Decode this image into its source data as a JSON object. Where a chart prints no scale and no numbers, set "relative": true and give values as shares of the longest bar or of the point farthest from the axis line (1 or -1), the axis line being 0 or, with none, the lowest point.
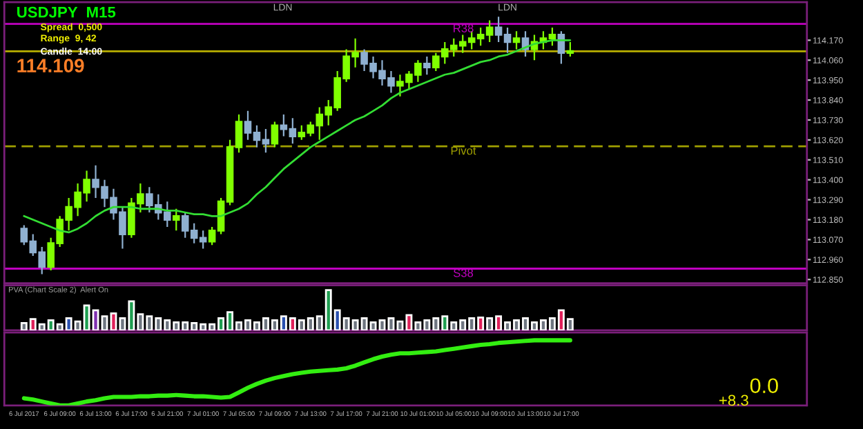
{
  "chart_data": [
    {
      "type": "candlestick",
      "categories": [
        null,
        null,
        null,
        null,
        null,
        null,
        null,
        null,
        null,
        null,
        null,
        null,
        null,
        null,
        null,
        null,
        null,
        null,
        null,
        null,
        null,
        null,
        null,
        null,
        null,
        null,
        null,
        null,
        null,
        null,
        null,
        null,
        null,
        null,
        null,
        null,
        null,
        null,
        null,
        null,
        null,
        null,
        null,
        null,
        null,
        null,
        null,
        null,
        null,
        null,
        null,
        null,
        null,
        null,
        null,
        null,
        null,
        null,
        null,
        null,
        null,
        null
      ],
      "ohlc": [
        [
          113.13,
          113.15,
          113.04,
          113.06
        ],
        [
          113.06,
          113.1,
          112.98,
          113.0
        ],
        [
          113.0,
          113.03,
          112.88,
          112.92
        ],
        [
          112.92,
          113.08,
          112.9,
          113.05
        ],
        [
          113.05,
          113.2,
          113.03,
          113.18
        ],
        [
          113.18,
          113.3,
          113.12,
          113.25
        ],
        [
          113.25,
          113.38,
          113.2,
          113.33
        ],
        [
          113.33,
          113.45,
          113.28,
          113.4
        ],
        [
          113.4,
          113.48,
          113.3,
          113.36
        ],
        [
          113.36,
          113.4,
          113.25,
          113.3
        ],
        [
          113.3,
          113.35,
          113.18,
          113.22
        ],
        [
          113.22,
          113.25,
          113.02,
          113.1
        ],
        [
          113.1,
          113.3,
          113.08,
          113.27
        ],
        [
          113.27,
          113.38,
          113.22,
          113.32
        ],
        [
          113.32,
          113.36,
          113.22,
          113.26
        ],
        [
          113.26,
          113.32,
          113.18,
          113.22
        ],
        [
          113.22,
          113.28,
          113.14,
          113.18
        ],
        [
          113.18,
          113.24,
          113.12,
          113.2
        ],
        [
          113.2,
          113.22,
          113.08,
          113.12
        ],
        [
          113.12,
          113.16,
          113.05,
          113.08
        ],
        [
          113.08,
          113.12,
          113.02,
          113.06
        ],
        [
          113.06,
          113.14,
          113.04,
          113.12
        ],
        [
          113.12,
          113.3,
          113.1,
          113.28
        ],
        [
          113.28,
          113.62,
          113.26,
          113.58
        ],
        [
          113.58,
          113.76,
          113.55,
          113.72
        ],
        [
          113.72,
          113.78,
          113.62,
          113.66
        ],
        [
          113.66,
          113.7,
          113.58,
          113.62
        ],
        [
          113.62,
          113.68,
          113.55,
          113.6
        ],
        [
          113.6,
          113.72,
          113.58,
          113.7
        ],
        [
          113.7,
          113.76,
          113.64,
          113.68
        ],
        [
          113.68,
          113.74,
          113.6,
          113.64
        ],
        [
          113.64,
          113.7,
          113.62,
          113.66
        ],
        [
          113.66,
          113.72,
          113.64,
          113.7
        ],
        [
          113.7,
          113.8,
          113.62,
          113.76
        ],
        [
          113.76,
          113.84,
          113.7,
          113.8
        ],
        [
          113.8,
          114.0,
          113.78,
          113.96
        ],
        [
          113.96,
          114.12,
          113.94,
          114.08
        ],
        [
          114.08,
          114.18,
          114.02,
          114.1
        ],
        [
          114.1,
          114.12,
          114.0,
          114.04
        ],
        [
          114.04,
          114.08,
          113.96,
          114.0
        ],
        [
          114.0,
          114.06,
          113.92,
          113.96
        ],
        [
          113.96,
          114.0,
          113.88,
          113.92
        ],
        [
          113.92,
          113.98,
          113.86,
          113.94
        ],
        [
          113.94,
          114.0,
          113.9,
          113.98
        ],
        [
          113.98,
          114.06,
          113.94,
          114.04
        ],
        [
          114.04,
          114.08,
          113.98,
          114.02
        ],
        [
          114.02,
          114.1,
          114.0,
          114.08
        ],
        [
          114.08,
          114.16,
          114.04,
          114.12
        ],
        [
          114.12,
          114.18,
          114.08,
          114.14
        ],
        [
          114.14,
          114.2,
          114.1,
          114.16
        ],
        [
          114.16,
          114.22,
          114.12,
          114.18
        ],
        [
          114.18,
          114.24,
          114.14,
          114.2
        ],
        [
          114.2,
          114.28,
          114.16,
          114.24
        ],
        [
          114.24,
          114.3,
          114.16,
          114.2
        ],
        [
          114.2,
          114.24,
          114.1,
          114.16
        ],
        [
          114.16,
          114.22,
          114.12,
          114.18
        ],
        [
          114.18,
          114.22,
          114.08,
          114.12
        ],
        [
          114.12,
          114.2,
          114.06,
          114.16
        ],
        [
          114.16,
          114.22,
          114.12,
          114.18
        ],
        [
          114.18,
          114.24,
          114.14,
          114.2
        ],
        [
          114.2,
          114.22,
          114.04,
          114.1
        ],
        [
          114.1,
          114.16,
          114.08,
          114.11
        ]
      ],
      "series": [
        {
          "type": "line",
          "color": "#33dd33",
          "values": [
            113.2,
            113.18,
            113.16,
            113.14,
            113.12,
            113.11,
            113.13,
            113.16,
            113.2,
            113.23,
            113.25,
            113.25,
            113.25,
            113.24,
            113.24,
            113.24,
            113.23,
            113.23,
            113.22,
            113.21,
            113.21,
            113.2,
            113.2,
            113.22,
            113.24,
            113.27,
            113.32,
            113.36,
            113.41,
            113.46,
            113.5,
            113.54,
            113.58,
            113.61,
            113.64,
            113.67,
            113.7,
            113.73,
            113.75,
            113.78,
            113.81,
            113.85,
            113.88,
            113.9,
            113.92,
            113.94,
            113.96,
            113.98,
            113.99,
            114.01,
            114.03,
            114.05,
            114.06,
            114.08,
            114.09,
            114.11,
            114.13,
            114.15,
            114.16,
            114.17,
            114.17,
            114.17
          ]
        }
      ],
      "ylim": [
        112.83,
        114.38
      ],
      "yticks": [
        {
          "value": 114.17,
          "label": "114.170"
        },
        {
          "value": 114.06,
          "label": "114.060"
        },
        {
          "value": 113.95,
          "label": "113.950"
        },
        {
          "value": 113.84,
          "label": "113.840"
        },
        {
          "value": 113.73,
          "label": "113.730"
        },
        {
          "value": 113.62,
          "label": "113.620"
        },
        {
          "value": 113.51,
          "label": "113.510"
        },
        {
          "value": 113.4,
          "label": "113.400"
        },
        {
          "value": 113.29,
          "label": "113.290"
        },
        {
          "value": 113.18,
          "label": "113.180"
        },
        {
          "value": 113.07,
          "label": "113.070"
        },
        {
          "value": 112.96,
          "label": "112.960"
        },
        {
          "value": 112.85,
          "label": "112.850"
        }
      ],
      "ref_lines": [
        {
          "axis": "y",
          "value": 114.26,
          "label": "R38",
          "color": "#c000c0"
        },
        {
          "axis": "y",
          "value": 114.109,
          "color": "#b8b000"
        },
        {
          "axis": "y",
          "value": 113.585,
          "label": "Pivot",
          "color": "#a0a000",
          "line_style": "dashed"
        },
        {
          "axis": "y",
          "value": 112.91,
          "label": "S38",
          "color": "#c000c0"
        }
      ],
      "annotations": [
        "USDJPY  M15",
        "Spread  0,500",
        "Range  9, 42",
        "Candle  14:00",
        "114.109",
        "LDN",
        "LDN"
      ],
      "tick_labels": "y"
    },
    {
      "type": "bar",
      "relative": true,
      "title": "PVA (Chart Scale 2)  Alert On",
      "categories": [
        null,
        null,
        null,
        null,
        null,
        null,
        null,
        null,
        null,
        null,
        null,
        null,
        null,
        null,
        null,
        null,
        null,
        null,
        null,
        null,
        null,
        null,
        null,
        null,
        null,
        null,
        null,
        null,
        null,
        null,
        null,
        null,
        null,
        null,
        null,
        null,
        null,
        null,
        null,
        null,
        null,
        null,
        null,
        null,
        null,
        null,
        null,
        null,
        null,
        null,
        null,
        null,
        null,
        null,
        null,
        null,
        null,
        null,
        null,
        null,
        null,
        null
      ],
      "values": [
        0.18,
        0.28,
        0.15,
        0.25,
        0.15,
        0.3,
        0.22,
        0.62,
        0.5,
        0.35,
        0.42,
        0.3,
        0.72,
        0.4,
        0.35,
        0.3,
        0.25,
        0.2,
        0.2,
        0.18,
        0.15,
        0.15,
        0.3,
        0.45,
        0.2,
        0.25,
        0.2,
        0.3,
        0.25,
        0.35,
        0.3,
        0.25,
        0.3,
        0.35,
        1.0,
        0.5,
        0.3,
        0.25,
        0.3,
        0.2,
        0.25,
        0.3,
        0.22,
        0.38,
        0.2,
        0.25,
        0.3,
        0.35,
        0.2,
        0.25,
        0.3,
        0.32,
        0.3,
        0.35,
        0.2,
        0.25,
        0.3,
        0.2,
        0.25,
        0.3,
        0.5,
        0.28
      ],
      "colors": [
        "#6e7580",
        "#e0205a",
        "#6e7580",
        "#1e9e50",
        "#6e7580",
        "#2a50b0",
        "#6e7580",
        "#1e9e50",
        "#8030b0",
        "#6e7580",
        "#e0205a",
        "#6e7580",
        "#1e9e50",
        "#6e7580",
        "#6e7580",
        "#6e7580",
        "#6e7580",
        "#6e7580",
        "#6e7580",
        "#6e7580",
        "#6e7580",
        "#6e7580",
        "#1e9e50",
        "#1e9e50",
        "#6e7580",
        "#6e7580",
        "#6e7580",
        "#6e7580",
        "#6e7580",
        "#2a50b0",
        "#e0205a",
        "#6e7580",
        "#6e7580",
        "#6e7580",
        "#1e9e50",
        "#2a50b0",
        "#6e7580",
        "#6e7580",
        "#6e7580",
        "#6e7580",
        "#6e7580",
        "#6e7580",
        "#6e7580",
        "#e0205a",
        "#6e7580",
        "#6e7580",
        "#6e7580",
        "#1e9e50",
        "#6e7580",
        "#6e7580",
        "#6e7580",
        "#e0205a",
        "#6e7580",
        "#e0205a",
        "#6e7580",
        "#6e7580",
        "#6e7580",
        "#6e7580",
        "#6e7580",
        "#6e7580",
        "#e0205a",
        "#6e7580"
      ],
      "tick_labels": false
    },
    {
      "type": "line",
      "relative": true,
      "categories": [
        "6 Jul 2017",
        null,
        null,
        null,
        "6 Jul 09:00",
        null,
        null,
        null,
        "6 Jul 13:00",
        null,
        null,
        null,
        "6 Jul 17:00",
        null,
        null,
        null,
        "6 Jul 21:00",
        null,
        null,
        null,
        "7 Jul 01:00",
        null,
        null,
        null,
        "7 Jul 05:00",
        null,
        null,
        null,
        "7 Jul 09:00",
        null,
        null,
        null,
        "7 Jul 13:00",
        null,
        null,
        null,
        "7 Jul 17:00",
        null,
        null,
        null,
        "7 Jul 21:00",
        null,
        null,
        null,
        "10 Jul 01:00",
        null,
        null,
        null,
        "10 Jul 05:00",
        null,
        null,
        null,
        "10 Jul 09:00",
        null,
        null,
        null,
        "10 Jul 13:00",
        null,
        null,
        null,
        "10 Jul 17:00",
        null
      ],
      "series": [
        {
          "color": "#33ee11",
          "values": [
            0.11,
            0.09,
            0.06,
            0.03,
            0.0,
            0.0,
            0.03,
            0.06,
            0.08,
            0.11,
            0.13,
            0.13,
            0.13,
            0.14,
            0.14,
            0.15,
            0.15,
            0.16,
            0.15,
            0.14,
            0.14,
            0.13,
            0.12,
            0.13,
            0.2,
            0.27,
            0.33,
            0.38,
            0.42,
            0.45,
            0.48,
            0.5,
            0.52,
            0.53,
            0.54,
            0.55,
            0.57,
            0.61,
            0.66,
            0.71,
            0.75,
            0.78,
            0.8,
            0.8,
            0.81,
            0.82,
            0.83,
            0.85,
            0.87,
            0.89,
            0.91,
            0.93,
            0.94,
            0.96,
            0.97,
            0.98,
            0.99,
            1.0,
            1.0,
            1.0,
            1.0,
            1.0
          ]
        }
      ],
      "annotations": [
        "0.0",
        "+8.3"
      ],
      "tick_labels": "x"
    }
  ]
}
